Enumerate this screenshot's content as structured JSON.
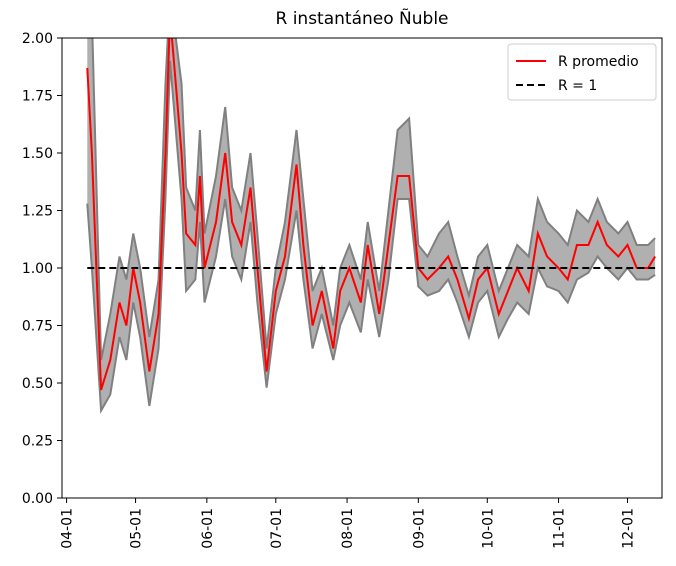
{
  "chart_data": {
    "type": "line",
    "title": "R instantáneo Ñuble",
    "x": [
      "04-10",
      "04-12",
      "04-16",
      "04-20",
      "04-24",
      "04-27",
      "04-30",
      "05-03",
      "05-07",
      "05-11",
      "05-14",
      "05-16",
      "05-21",
      "05-23",
      "05-27",
      "05-29",
      "05-31",
      "06-05",
      "06-09",
      "06-12",
      "06-16",
      "06-20",
      "06-23",
      "06-27",
      "07-01",
      "07-05",
      "07-10",
      "07-13",
      "07-17",
      "07-21",
      "07-26",
      "07-29",
      "08-02",
      "08-07",
      "08-10",
      "08-15",
      "08-19",
      "08-23",
      "08-28",
      "09-01",
      "09-05",
      "09-10",
      "09-14",
      "09-18",
      "09-23",
      "09-27",
      "10-01",
      "10-06",
      "10-10",
      "10-14",
      "10-19",
      "10-23",
      "10-27",
      "11-01",
      "11-05",
      "11-09",
      "11-14",
      "11-18",
      "11-22",
      "11-27",
      "12-01",
      "12-05",
      "12-10",
      "12-13"
    ],
    "series": [
      {
        "name": "R promedio",
        "color": "#ff0000",
        "dashed": false,
        "values": [
          1.87,
          1.5,
          0.47,
          0.6,
          0.85,
          0.75,
          1.0,
          0.85,
          0.55,
          0.8,
          1.5,
          2.1,
          1.5,
          1.15,
          1.1,
          1.4,
          1.0,
          1.2,
          1.5,
          1.2,
          1.1,
          1.35,
          1.0,
          0.55,
          0.9,
          1.05,
          1.45,
          1.1,
          0.75,
          0.9,
          0.65,
          0.9,
          1.0,
          0.85,
          1.1,
          0.8,
          1.1,
          1.4,
          1.4,
          1.0,
          0.95,
          1.0,
          1.05,
          0.95,
          0.78,
          0.95,
          1.0,
          0.8,
          0.9,
          1.0,
          0.9,
          1.15,
          1.05,
          1.0,
          0.95,
          1.1,
          1.1,
          1.2,
          1.1,
          1.05,
          1.1,
          1.0,
          1.0,
          1.05
        ]
      },
      {
        "name": "R = 1",
        "color": "#000000",
        "dashed": true,
        "values": [
          1,
          1,
          1,
          1,
          1,
          1,
          1,
          1,
          1,
          1,
          1,
          1,
          1,
          1,
          1,
          1,
          1,
          1,
          1,
          1,
          1,
          1,
          1,
          1,
          1,
          1,
          1,
          1,
          1,
          1,
          1,
          1,
          1,
          1,
          1,
          1,
          1,
          1,
          1,
          1,
          1,
          1,
          1,
          1,
          1,
          1,
          1,
          1,
          1,
          1,
          1,
          1,
          1,
          1,
          1,
          1,
          1,
          1,
          1,
          1,
          1,
          1,
          1,
          1
        ]
      }
    ],
    "band": {
      "color": "#b0b0b0",
      "edge_color": "#808080",
      "lower": [
        1.28,
        1.0,
        0.38,
        0.45,
        0.7,
        0.6,
        0.85,
        0.7,
        0.4,
        0.65,
        1.3,
        1.9,
        1.3,
        0.9,
        0.95,
        1.2,
        0.85,
        1.05,
        1.3,
        1.05,
        0.95,
        1.2,
        0.85,
        0.48,
        0.8,
        0.95,
        1.25,
        0.95,
        0.65,
        0.8,
        0.6,
        0.75,
        0.85,
        0.72,
        0.95,
        0.7,
        0.95,
        1.3,
        1.3,
        0.92,
        0.88,
        0.9,
        0.95,
        0.85,
        0.7,
        0.85,
        0.9,
        0.7,
        0.78,
        0.85,
        0.8,
        1.0,
        0.92,
        0.9,
        0.85,
        0.95,
        0.98,
        1.05,
        1.0,
        0.95,
        1.0,
        0.95,
        0.95,
        0.97
      ],
      "upper": [
        2.1,
        2.1,
        0.6,
        0.8,
        1.05,
        0.95,
        1.15,
        1.0,
        0.7,
        0.95,
        1.8,
        2.2,
        1.8,
        1.35,
        1.25,
        1.6,
        1.15,
        1.4,
        1.7,
        1.35,
        1.25,
        1.5,
        1.15,
        0.65,
        1.0,
        1.2,
        1.6,
        1.3,
        0.9,
        1.0,
        0.75,
        1.0,
        1.1,
        0.95,
        1.2,
        0.9,
        1.25,
        1.6,
        1.65,
        1.1,
        1.05,
        1.15,
        1.2,
        1.05,
        0.88,
        1.05,
        1.1,
        0.9,
        1.0,
        1.1,
        1.05,
        1.3,
        1.2,
        1.15,
        1.1,
        1.25,
        1.2,
        1.3,
        1.2,
        1.15,
        1.2,
        1.1,
        1.1,
        1.13
      ]
    },
    "xlim": [
      "03-30",
      "12-16"
    ],
    "xticks": [
      "04-01",
      "05-01",
      "06-01",
      "07-01",
      "08-01",
      "09-01",
      "10-01",
      "11-01",
      "12-01"
    ],
    "ylim": [
      0,
      2
    ],
    "yticks": [
      {
        "value": 0,
        "label": "0.00"
      },
      {
        "value": 0.25,
        "label": "0.25"
      },
      {
        "value": 0.5,
        "label": "0.50"
      },
      {
        "value": 0.75,
        "label": "0.75"
      },
      {
        "value": 1,
        "label": "1.00"
      },
      {
        "value": 1.25,
        "label": "1.25"
      },
      {
        "value": 1.5,
        "label": "1.50"
      },
      {
        "value": 1.75,
        "label": "1.75"
      },
      {
        "value": 2,
        "label": "2.00"
      }
    ],
    "legend": "upper right",
    "grid": false
  }
}
